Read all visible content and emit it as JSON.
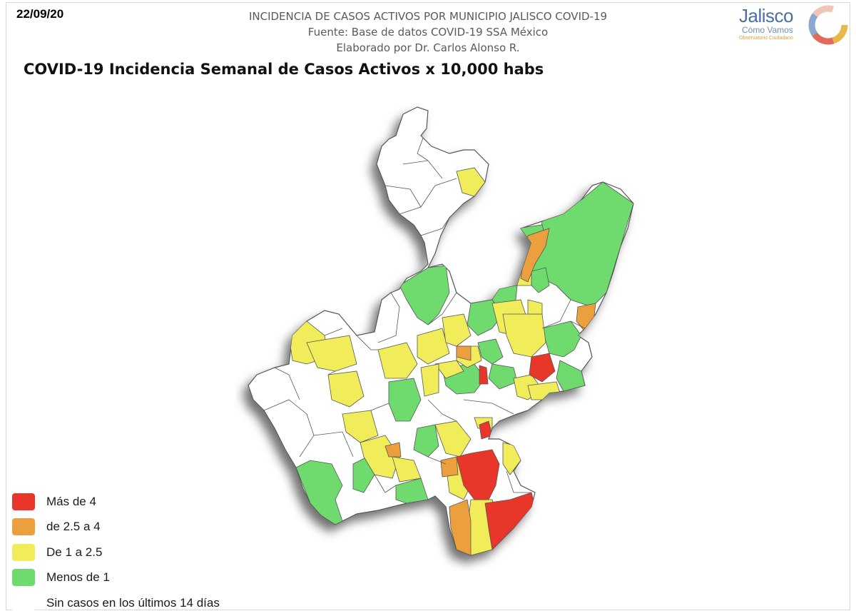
{
  "date": "22/09/20",
  "header": {
    "line1": "INCIDENCIA DE CASOS ACTIVOS POR MUNICIPIO JALISCO COVID-19",
    "line2": "Fuente: Base de datos COVID-19 SSA México",
    "line3": "Elaborado por Dr. Carlos Alonso R."
  },
  "title": "COVID-19 Incidencia Semanal de Casos Activos x 10,000 habs",
  "logo": {
    "brand": "Jalisco",
    "sub": "Cómo Vamos",
    "tiny": "Observatorio Ciudadano",
    "ring_colors": [
      "#e8b84a",
      "#e36a5a",
      "#8aa7d0",
      "#f0c4b8",
      "#f4d35e"
    ]
  },
  "legend": [
    {
      "label": "Más de 4",
      "color": "#e8362a"
    },
    {
      "label": "de 2.5 a 4",
      "color": "#eba03d"
    },
    {
      "label": "De 1 a 2.5",
      "color": "#f1ed5a"
    },
    {
      "label": "Menos de 1",
      "color": "#6fdb6f"
    },
    {
      "label": "Sin casos en los últimos 14 días",
      "color": "#ffffff"
    }
  ]
}
